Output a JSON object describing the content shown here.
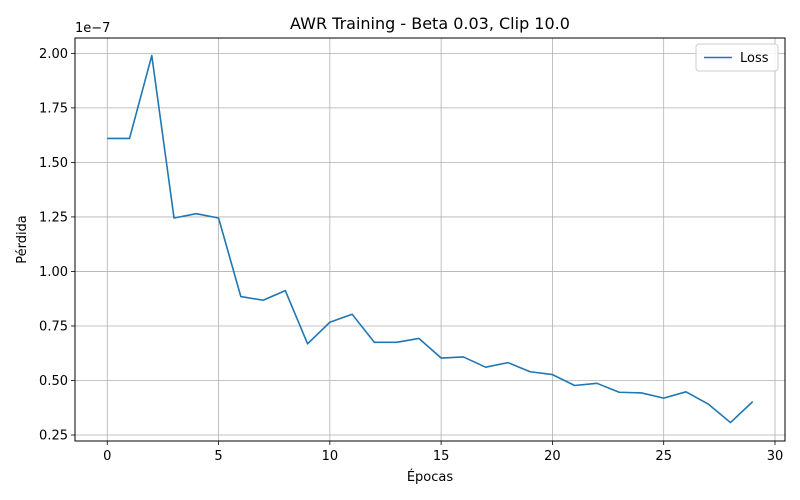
{
  "chart_data": {
    "type": "line",
    "title": "AWR Training - Beta 0.03, Clip 10.0",
    "xlabel": "Épocas",
    "ylabel": "Pérdida",
    "y_offset_label": "1e−7",
    "y_scale_factor": 1e-07,
    "xlim": [
      -1.45,
      30.45
    ],
    "ylim": [
      0.2225,
      2.0705
    ],
    "x_ticks": [
      0,
      5,
      10,
      15,
      20,
      25,
      30
    ],
    "x_tick_labels": [
      "0",
      "5",
      "10",
      "15",
      "20",
      "25",
      "30"
    ],
    "y_ticks": [
      0.25,
      0.5,
      0.75,
      1.0,
      1.25,
      1.5,
      1.75,
      2.0
    ],
    "y_tick_labels": [
      "0.25",
      "0.50",
      "0.75",
      "1.00",
      "1.25",
      "1.50",
      "1.75",
      "2.00"
    ],
    "grid": true,
    "legend_position": "top-right",
    "series": [
      {
        "name": "Loss",
        "color": "#1f77b4",
        "x": [
          0,
          1,
          2,
          3,
          4,
          5,
          6,
          7,
          8,
          9,
          10,
          11,
          12,
          13,
          14,
          15,
          16,
          17,
          18,
          19,
          20,
          21,
          22,
          23,
          24,
          25,
          26,
          27,
          28,
          29
        ],
        "values": [
          1.61,
          1.61,
          1.99,
          1.245,
          1.265,
          1.245,
          0.885,
          0.868,
          0.912,
          0.668,
          0.767,
          0.804,
          0.675,
          0.675,
          0.693,
          0.603,
          0.608,
          0.561,
          0.582,
          0.54,
          0.527,
          0.477,
          0.487,
          0.446,
          0.443,
          0.419,
          0.448,
          0.392,
          0.307,
          0.403
        ]
      }
    ]
  }
}
